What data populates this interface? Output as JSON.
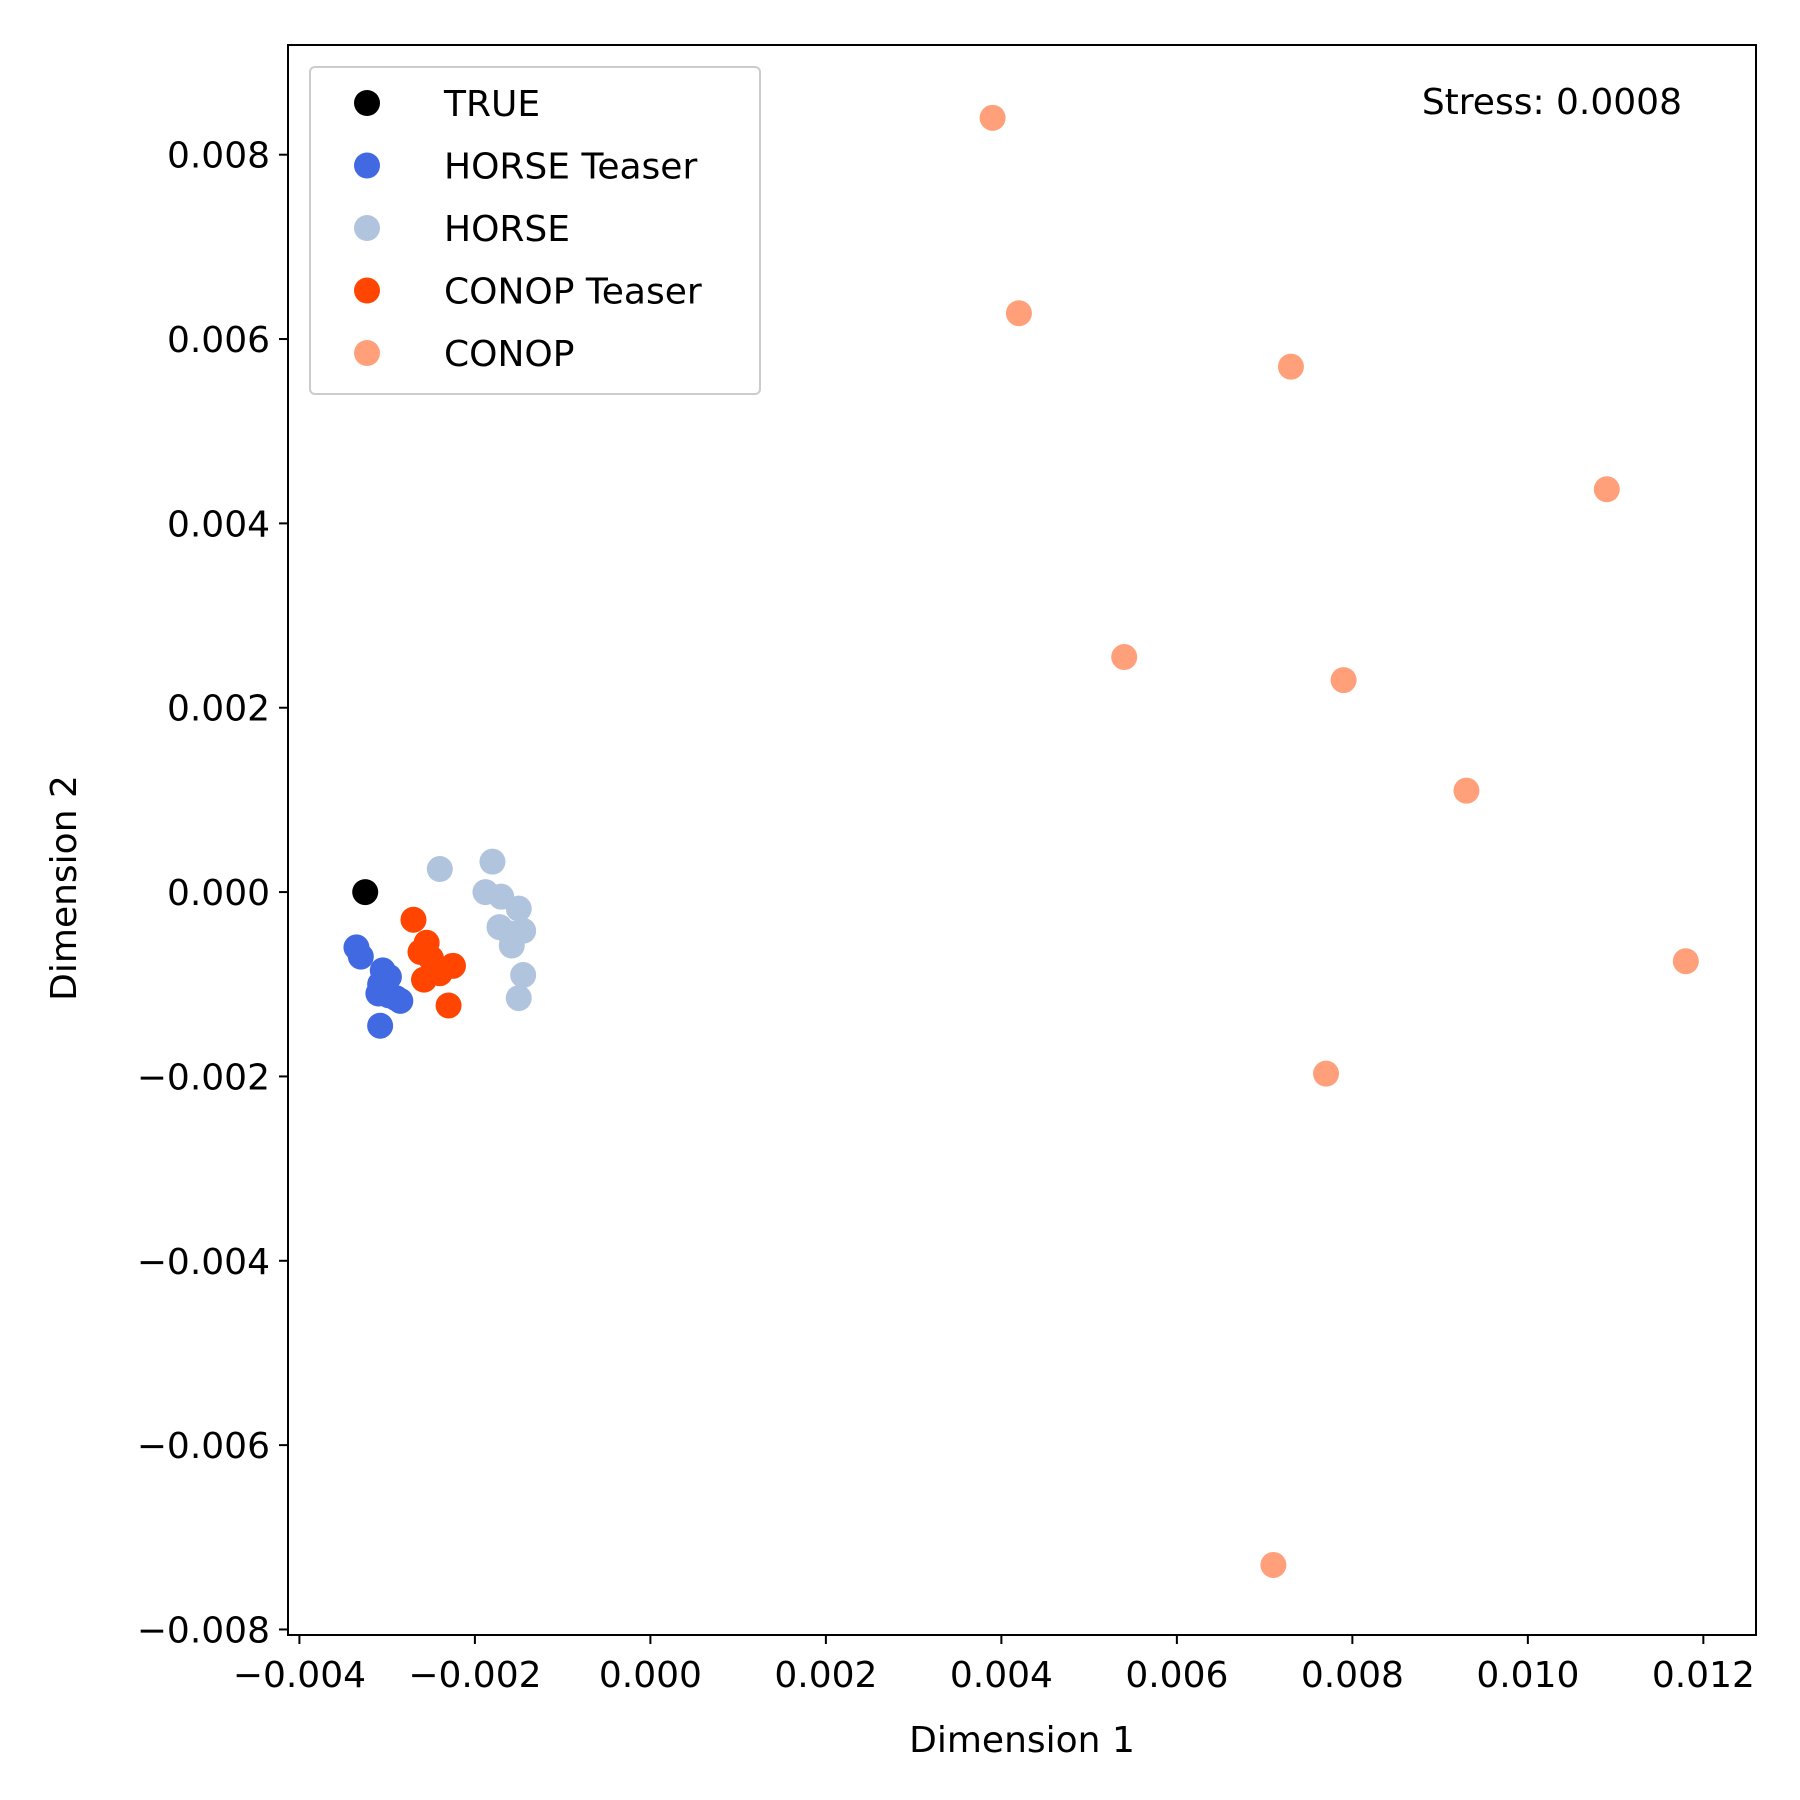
{
  "chart_data": {
    "type": "scatter",
    "xlabel": "Dimension 1",
    "ylabel": "Dimension 2",
    "xlim": [
      -0.00413,
      0.0126
    ],
    "ylim": [
      -0.00806,
      0.00919
    ],
    "xticks": [
      -0.004,
      -0.002,
      0.0,
      0.002,
      0.004,
      0.006,
      0.008,
      0.01,
      0.012
    ],
    "yticks": [
      -0.008,
      -0.006,
      -0.004,
      -0.002,
      0.0,
      0.002,
      0.004,
      0.006,
      0.008
    ],
    "xtick_labels": [
      "−0.004",
      "−0.002",
      "0.000",
      "0.002",
      "0.004",
      "0.006",
      "0.008",
      "0.010",
      "0.012"
    ],
    "ytick_labels": [
      "−0.008",
      "−0.006",
      "−0.004",
      "−0.002",
      "0.000",
      "0.002",
      "0.004",
      "0.006",
      "0.008"
    ],
    "grid": false,
    "legend_position": "top-left",
    "annotation": "Stress: 0.0008",
    "series": [
      {
        "name": "TRUE",
        "color": "#000000",
        "points": [
          [
            -0.00325,
            0.0
          ]
        ]
      },
      {
        "name": "HORSE Teaser",
        "color": "#4169e1",
        "points": [
          [
            -0.00335,
            -0.0006
          ],
          [
            -0.0033,
            -0.0007
          ],
          [
            -0.00305,
            -0.00085
          ],
          [
            -0.00298,
            -0.00092
          ],
          [
            -0.00308,
            -0.001
          ],
          [
            -0.0031,
            -0.0011
          ],
          [
            -0.0029,
            -0.00115
          ],
          [
            -0.00285,
            -0.00118
          ],
          [
            -0.00298,
            -0.00112
          ],
          [
            -0.00308,
            -0.00145
          ]
        ]
      },
      {
        "name": "HORSE",
        "color": "#b0c4de",
        "points": [
          [
            -0.0024,
            0.00025
          ],
          [
            -0.0018,
            0.00033
          ],
          [
            -0.00188,
            0.0
          ],
          [
            -0.0017,
            -5e-05
          ],
          [
            -0.0015,
            -0.00018
          ],
          [
            -0.00172,
            -0.00038
          ],
          [
            -0.0016,
            -0.00045
          ],
          [
            -0.00145,
            -0.00042
          ],
          [
            -0.00158,
            -0.00058
          ],
          [
            -0.00145,
            -0.0009
          ],
          [
            -0.0015,
            -0.00115
          ]
        ]
      },
      {
        "name": "CONOP Teaser",
        "color": "#ff4500",
        "points": [
          [
            -0.0027,
            -0.0003
          ],
          [
            -0.00255,
            -0.00055
          ],
          [
            -0.00262,
            -0.00065
          ],
          [
            -0.0025,
            -0.00072
          ],
          [
            -0.00225,
            -0.0008
          ],
          [
            -0.0024,
            -0.00088
          ],
          [
            -0.00258,
            -0.00095
          ],
          [
            -0.0023,
            -0.00123
          ]
        ]
      },
      {
        "name": "CONOP",
        "color": "#ffa07a",
        "points": [
          [
            0.0039,
            0.0084
          ],
          [
            0.0042,
            0.00628
          ],
          [
            0.0073,
            0.0057
          ],
          [
            0.0109,
            0.00437
          ],
          [
            0.0054,
            0.00255
          ],
          [
            0.0079,
            0.0023
          ],
          [
            0.0093,
            0.0011
          ],
          [
            0.0118,
            -0.00075
          ],
          [
            0.0077,
            -0.00197
          ],
          [
            0.0071,
            -0.0073
          ]
        ]
      }
    ]
  }
}
